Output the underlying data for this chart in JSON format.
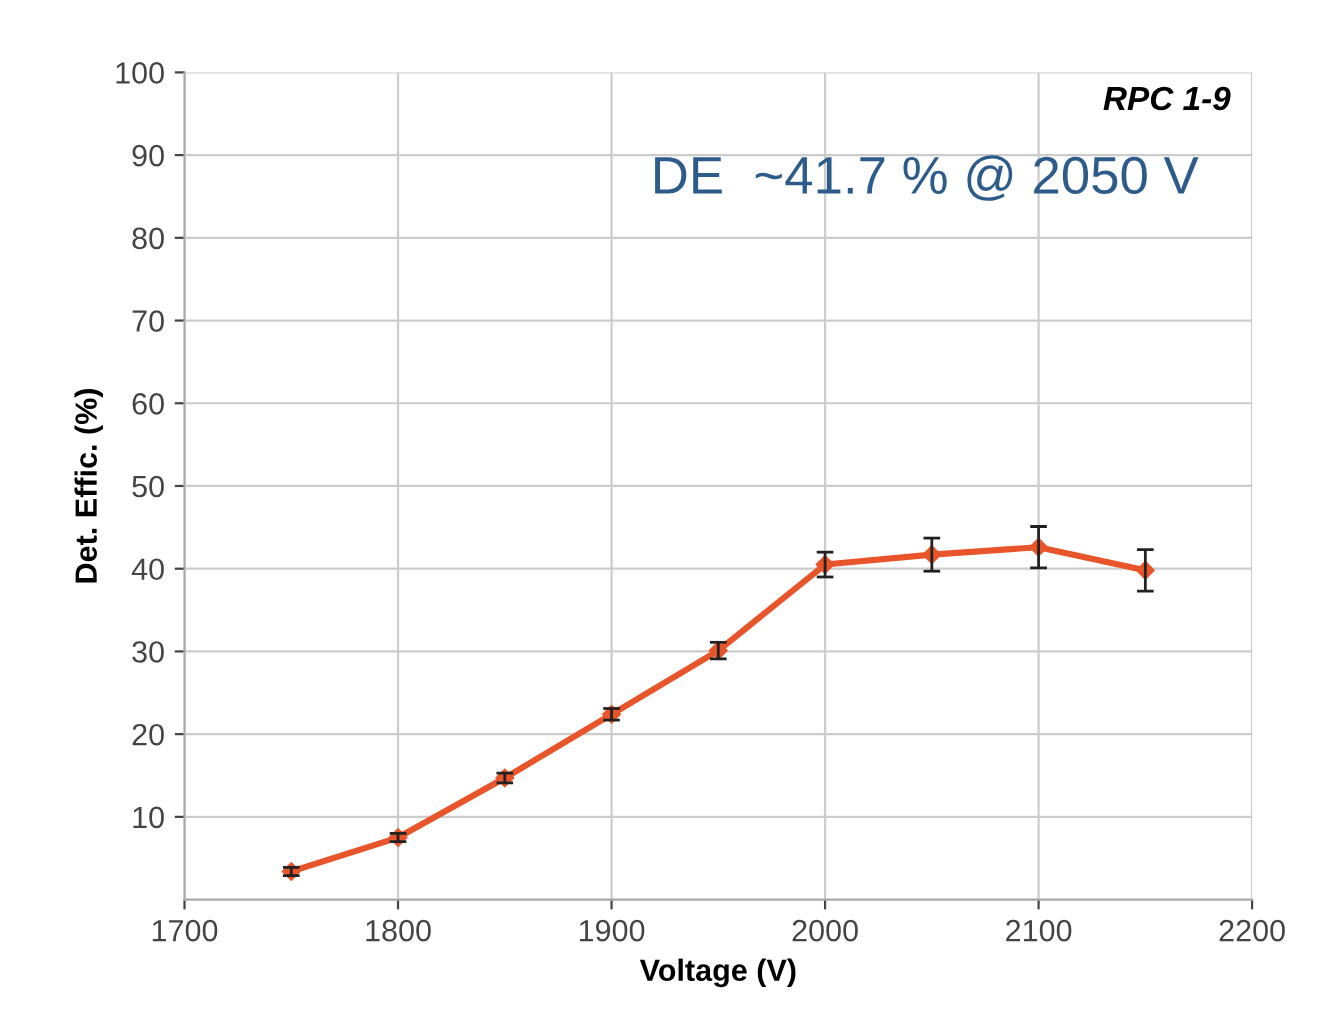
{
  "chart_data": {
    "type": "line",
    "xlabel": "Voltage (V)",
    "ylabel": "Det. Effic. (%)",
    "x": [
      1750,
      1800,
      1850,
      1900,
      1950,
      2000,
      2050,
      2100,
      2150
    ],
    "series": [
      {
        "color": "#e8552a",
        "values": [
          3.4,
          7.5,
          14.7,
          22.4,
          30.1,
          40.5,
          41.7,
          42.6,
          39.8
        ],
        "errors": [
          0.5,
          0.5,
          0.6,
          0.7,
          1.0,
          1.5,
          2.0,
          2.5,
          2.5
        ]
      }
    ],
    "xlim": [
      1700,
      2200
    ],
    "xticks": [
      1700,
      1800,
      1900,
      2000,
      2100,
      2200
    ],
    "ylim": [
      0,
      100
    ],
    "yticks": [
      10,
      20,
      30,
      40,
      50,
      60,
      70,
      80,
      90,
      100
    ],
    "grid": true,
    "marker": "diamond",
    "line_style": "solid",
    "annotations": [
      "RPC 1-9",
      "DE  ~41.7 % @ 2050 V"
    ]
  }
}
